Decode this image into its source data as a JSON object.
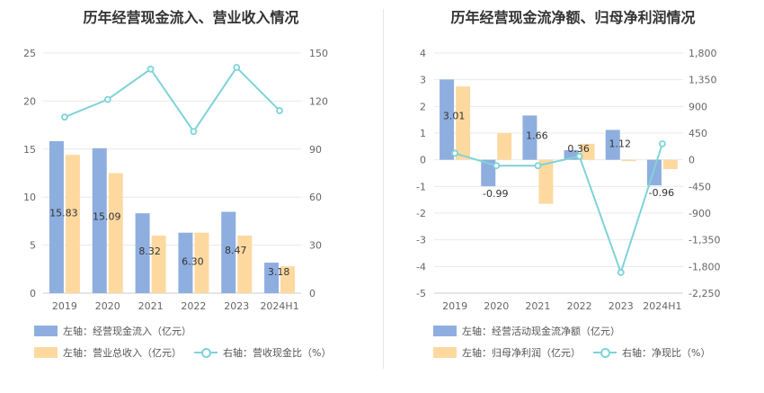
{
  "colors": {
    "bar1": "#8eaedf",
    "bar2": "#fdd9a0",
    "line": "#7ed3d8",
    "grid": "#e9e9e9"
  },
  "chart_data": [
    {
      "type": "bar",
      "title": "历年经营现金流入、营业收入情况",
      "categories": [
        "2019",
        "2020",
        "2021",
        "2022",
        "2023",
        "2024H1"
      ],
      "left_axis": {
        "min": 0,
        "max": 25,
        "ticks": [
          "0",
          "5",
          "10",
          "15",
          "20",
          "25"
        ]
      },
      "right_axis": {
        "min": 0,
        "max": 150,
        "ticks": [
          "0",
          "30",
          "60",
          "90",
          "120",
          "150"
        ]
      },
      "series": [
        {
          "name": "左轴：经营现金流入（亿元）",
          "axis": "left",
          "kind": "bar",
          "values": [
            15.83,
            15.09,
            8.32,
            6.3,
            8.47,
            3.18
          ],
          "labels": [
            "15.83",
            "15.09",
            "8.32",
            "6.30",
            "8.47",
            "3.18"
          ]
        },
        {
          "name": "左轴：营业总收入（亿元）",
          "axis": "left",
          "kind": "bar",
          "values": [
            14.4,
            12.5,
            6.0,
            6.3,
            6.0,
            2.8
          ]
        },
        {
          "name": "右轴：营收现金比（%）",
          "axis": "right",
          "kind": "line",
          "values": [
            110,
            121,
            140,
            101,
            141,
            114
          ]
        }
      ]
    },
    {
      "type": "bar",
      "title": "历年经营现金流净额、归母净利润情况",
      "categories": [
        "2019",
        "2020",
        "2021",
        "2022",
        "2023",
        "2024H1"
      ],
      "left_axis": {
        "min": -5,
        "max": 4,
        "ticks": [
          "-5",
          "-4",
          "-3",
          "-2",
          "-1",
          "0",
          "1",
          "2",
          "3",
          "4"
        ]
      },
      "right_axis": {
        "min": -2250,
        "max": 1800,
        "ticks": [
          "-2,250",
          "-1,800",
          "-1,350",
          "-900",
          "-450",
          "0",
          "450",
          "900",
          "1,350",
          "1,800"
        ]
      },
      "series": [
        {
          "name": "左轴：经营活动现金流净额（亿元）",
          "axis": "left",
          "kind": "bar",
          "values": [
            3.01,
            -0.99,
            1.66,
            0.36,
            1.12,
            -0.96
          ],
          "labels": [
            "3.01",
            "-0.99",
            "1.66",
            "0.36",
            "1.12",
            "-0.96"
          ]
        },
        {
          "name": "左轴：归母净利润（亿元）",
          "axis": "left",
          "kind": "bar",
          "values": [
            2.75,
            1.0,
            -1.65,
            0.6,
            -0.05,
            -0.35
          ]
        },
        {
          "name": "右轴：净现比（%）",
          "axis": "right",
          "kind": "line",
          "values": [
            110,
            -100,
            -100,
            60,
            -1900,
            270
          ]
        }
      ]
    }
  ]
}
